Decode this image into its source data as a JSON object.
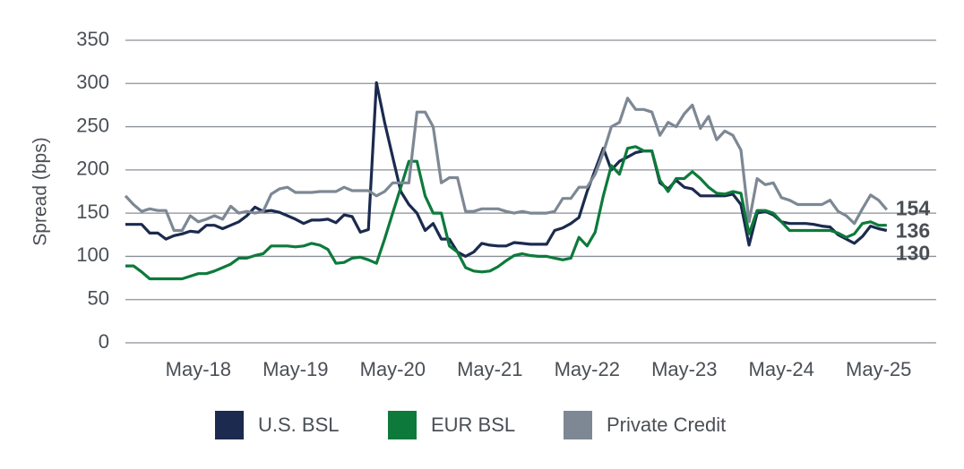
{
  "chart_data": {
    "type": "line",
    "ylabel": "Spread (bps)",
    "categories": [
      "Aug-17",
      "Sep-17",
      "Oct-17",
      "Nov-17",
      "Dec-17",
      "Jan-18",
      "Feb-18",
      "Mar-18",
      "Apr-18",
      "May-18",
      "Jun-18",
      "Jul-18",
      "Aug-18",
      "Sep-18",
      "Oct-18",
      "Nov-18",
      "Dec-18",
      "Jan-19",
      "Feb-19",
      "Mar-19",
      "Apr-19",
      "May-19",
      "Jun-19",
      "Jul-19",
      "Aug-19",
      "Sep-19",
      "Oct-19",
      "Nov-19",
      "Dec-19",
      "Jan-20",
      "Feb-20",
      "Mar-20",
      "Apr-20",
      "May-20",
      "Jun-20",
      "Jul-20",
      "Aug-20",
      "Sep-20",
      "Oct-20",
      "Nov-20",
      "Dec-20",
      "Jan-21",
      "Feb-21",
      "Mar-21",
      "Apr-21",
      "May-21",
      "Jun-21",
      "Jul-21",
      "Aug-21",
      "Sep-21",
      "Oct-21",
      "Nov-21",
      "Dec-21",
      "Jan-22",
      "Feb-22",
      "Mar-22",
      "Apr-22",
      "May-22",
      "Jun-22",
      "Jul-22",
      "Aug-22",
      "Sep-22",
      "Oct-22",
      "Nov-22",
      "Dec-22",
      "Jan-23",
      "Feb-23",
      "Mar-23",
      "Apr-23",
      "May-23",
      "Jun-23",
      "Jul-23",
      "Aug-23",
      "Sep-23",
      "Oct-23",
      "Nov-23",
      "Dec-23",
      "Jan-24",
      "Feb-24",
      "Mar-24",
      "Apr-24",
      "May-24",
      "Jun-24",
      "Jul-24",
      "Aug-24",
      "Sep-24",
      "Oct-24",
      "Nov-24",
      "Dec-24",
      "Jan-25",
      "Feb-25",
      "Mar-25",
      "Apr-25",
      "May-25",
      "Jun-25"
    ],
    "xticks": [
      "May-18",
      "May-19",
      "May-20",
      "May-21",
      "May-22",
      "May-23",
      "May-24",
      "May-25"
    ],
    "series": [
      {
        "name": "U.S. BSL",
        "color": "#1b2a4e",
        "values": [
          137,
          137,
          137,
          127,
          127,
          120,
          124,
          126,
          129,
          128,
          136,
          136,
          132,
          136,
          140,
          147,
          157,
          152,
          153,
          151,
          147,
          143,
          138,
          142,
          142,
          143,
          139,
          148,
          146,
          128,
          131,
          301,
          255,
          215,
          175,
          160,
          150,
          130,
          138,
          120,
          120,
          105,
          100,
          105,
          115,
          113,
          112,
          112,
          116,
          115,
          114,
          114,
          114,
          130,
          133,
          138,
          145,
          175,
          200,
          225,
          200,
          210,
          215,
          220,
          222,
          222,
          185,
          178,
          188,
          180,
          178,
          170,
          170,
          170,
          170,
          172,
          160,
          113,
          150,
          152,
          148,
          140,
          138,
          138,
          138,
          137,
          135,
          134,
          125,
          120,
          115,
          123,
          135,
          132,
          130
        ]
      },
      {
        "name": "EUR BSL",
        "color": "#0d7a3b",
        "values": [
          89,
          89,
          82,
          74,
          74,
          74,
          74,
          74,
          77,
          80,
          80,
          83,
          87,
          91,
          98,
          98,
          101,
          103,
          112,
          112,
          112,
          111,
          112,
          115,
          113,
          108,
          92,
          93,
          98,
          99,
          96,
          92,
          120,
          150,
          180,
          210,
          210,
          170,
          150,
          150,
          112,
          105,
          87,
          83,
          82,
          83,
          88,
          95,
          101,
          103,
          101,
          100,
          100,
          98,
          96,
          98,
          122,
          112,
          128,
          170,
          205,
          195,
          225,
          227,
          222,
          222,
          188,
          175,
          190,
          190,
          198,
          190,
          180,
          173,
          172,
          175,
          173,
          126,
          153,
          153,
          150,
          140,
          130,
          130,
          130,
          130,
          130,
          130,
          127,
          122,
          126,
          138,
          140,
          136,
          136
        ]
      },
      {
        "name": "Private Credit",
        "color": "#7d8894",
        "values": [
          170,
          160,
          152,
          155,
          153,
          153,
          130,
          130,
          147,
          140,
          143,
          147,
          143,
          158,
          150,
          152,
          150,
          152,
          172,
          178,
          180,
          174,
          174,
          174,
          175,
          175,
          175,
          180,
          176,
          176,
          176,
          170,
          175,
          185,
          185,
          185,
          267,
          267,
          250,
          185,
          191,
          191,
          152,
          152,
          155,
          155,
          155,
          152,
          150,
          152,
          150,
          150,
          150,
          152,
          167,
          167,
          180,
          180,
          195,
          220,
          250,
          255,
          283,
          270,
          270,
          267,
          240,
          255,
          250,
          265,
          275,
          248,
          262,
          235,
          245,
          240,
          223,
          140,
          190,
          183,
          185,
          168,
          165,
          160,
          160,
          160,
          160,
          165,
          152,
          147,
          138,
          155,
          171,
          165,
          154
        ]
      }
    ],
    "ylim": [
      0,
      350
    ],
    "yticks": [
      0,
      50,
      100,
      150,
      200,
      250,
      300,
      350
    ],
    "grid": true,
    "legend": "bottom"
  }
}
